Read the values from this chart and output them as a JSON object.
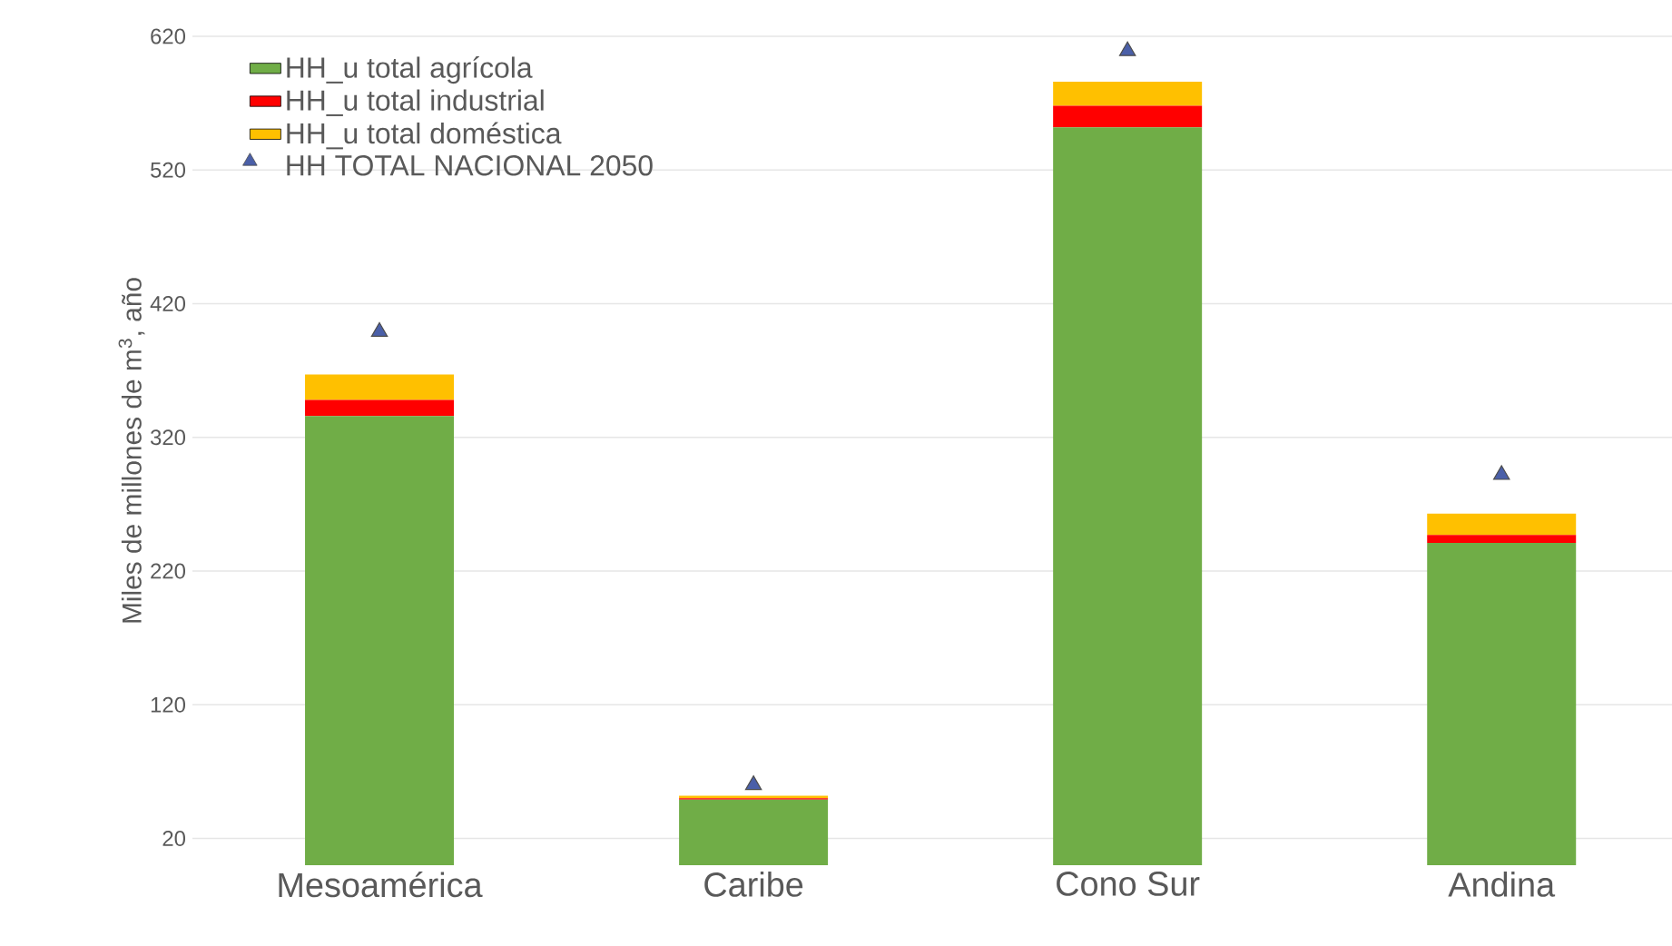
{
  "chart_data": {
    "type": "bar",
    "stacked": true,
    "ylabel": "Miles de millones de m$^{3}$, año",
    "categories": [
      "Mesoamérica",
      "Caribe",
      "Cono Sur",
      "Andina"
    ],
    "series": [
      {
        "name": "HH_u total agrícola",
        "color": "#70ad47",
        "values": [
          336,
          49,
          552,
          241
        ]
      },
      {
        "name": "HH_u total industrial",
        "color": "#ff0000",
        "values": [
          12,
          1,
          16,
          6
        ]
      },
      {
        "name": "HH_u total doméstica",
        "color": "#ffc000",
        "values": [
          19,
          2,
          18,
          16
        ]
      },
      {
        "name": "HH TOTAL NACIONAL 2050",
        "type": "scatter",
        "marker": "triangle",
        "color": "#4a5fa8",
        "values": [
          399,
          60,
          609,
          292
        ]
      }
    ],
    "ylim": [
      0,
      620
    ],
    "yticks": [
      20,
      120,
      220,
      320,
      420,
      520,
      620
    ],
    "grid": "y",
    "legend": "top left"
  }
}
